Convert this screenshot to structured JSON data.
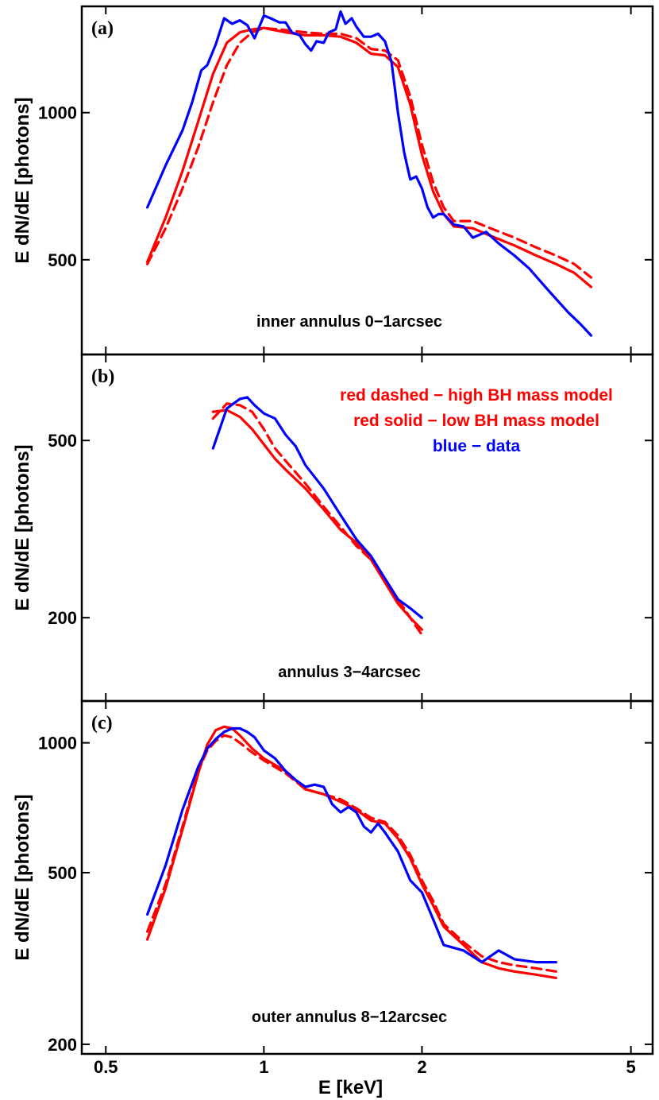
{
  "chart_data": [
    {
      "type": "line",
      "panel_label": "(a)",
      "annotation": "inner annulus 0−1arcsec",
      "ylabel": "E dN/dE [photons]",
      "xlabel": "",
      "x_scale": "log",
      "y_scale": "log",
      "xlim": [
        0.45,
        5.5
      ],
      "ylim": [
        320,
        1650
      ],
      "x_ticks": [
        0.5,
        1,
        2,
        5
      ],
      "y_ticks": [
        500,
        1000
      ],
      "series": [
        {
          "name": "",
          "color": "#ff0000",
          "style": "solid",
          "x": [
            0.6,
            0.65,
            0.7,
            0.75,
            0.8,
            0.85,
            0.9,
            0.95,
            1.0,
            1.1,
            1.2,
            1.3,
            1.4,
            1.5,
            1.6,
            1.7,
            1.8,
            1.9,
            2.0,
            2.1,
            2.2,
            2.3,
            2.5,
            2.7,
            3.0,
            3.3,
            3.6,
            3.9,
            4.2
          ],
          "y": [
            495,
            610,
            760,
            960,
            1200,
            1390,
            1460,
            1480,
            1490,
            1460,
            1440,
            1440,
            1430,
            1390,
            1320,
            1310,
            1240,
            1040,
            820,
            690,
            620,
            585,
            580,
            560,
            535,
            510,
            490,
            470,
            440
          ]
        },
        {
          "name": "",
          "color": "#ff0000",
          "style": "dashed",
          "x": [
            0.6,
            0.65,
            0.7,
            0.75,
            0.8,
            0.85,
            0.9,
            0.95,
            1.0,
            1.1,
            1.2,
            1.3,
            1.4,
            1.5,
            1.6,
            1.7,
            1.8,
            1.9,
            2.0,
            2.1,
            2.2,
            2.3,
            2.5,
            2.7,
            3.0,
            3.3,
            3.6,
            3.9,
            4.2
          ],
          "y": [
            490,
            580,
            700,
            850,
            1050,
            1250,
            1390,
            1460,
            1490,
            1475,
            1460,
            1450,
            1450,
            1420,
            1350,
            1340,
            1280,
            1080,
            860,
            720,
            640,
            600,
            600,
            580,
            555,
            530,
            510,
            490,
            460
          ]
        },
        {
          "name": "",
          "color": "#0000ff",
          "style": "solid",
          "x": [
            0.6,
            0.65,
            0.7,
            0.73,
            0.76,
            0.78,
            0.81,
            0.84,
            0.87,
            0.9,
            0.93,
            0.96,
            1.0,
            1.03,
            1.07,
            1.1,
            1.13,
            1.17,
            1.2,
            1.23,
            1.26,
            1.3,
            1.33,
            1.37,
            1.4,
            1.43,
            1.47,
            1.5,
            1.55,
            1.6,
            1.65,
            1.7,
            1.75,
            1.8,
            1.85,
            1.9,
            1.95,
            2.0,
            2.05,
            2.1,
            2.15,
            2.2,
            2.3,
            2.4,
            2.5,
            2.65,
            2.8,
            3.0,
            3.2,
            3.5,
            3.8,
            4.0,
            4.2
          ],
          "y": [
            640,
            780,
            920,
            1050,
            1220,
            1250,
            1380,
            1560,
            1520,
            1545,
            1510,
            1420,
            1580,
            1560,
            1530,
            1530,
            1460,
            1440,
            1380,
            1340,
            1400,
            1390,
            1460,
            1480,
            1610,
            1520,
            1560,
            1500,
            1430,
            1430,
            1450,
            1400,
            1270,
            1000,
            830,
            730,
            740,
            700,
            640,
            610,
            620,
            620,
            590,
            585,
            555,
            570,
            540,
            510,
            480,
            430,
            390,
            370,
            350
          ]
        }
      ]
    },
    {
      "type": "line",
      "panel_label": "(b)",
      "annotation": "annulus 3−4arcsec",
      "ylabel": "E dN/dE [photons]",
      "xlabel": "",
      "x_scale": "log",
      "y_scale": "log",
      "xlim": [
        0.45,
        5.5
      ],
      "ylim": [
        130,
        780
      ],
      "x_ticks": [
        0.5,
        1,
        2,
        5
      ],
      "y_ticks": [
        200,
        500
      ],
      "legend": [
        {
          "text": "red dashed − high BH mass model",
          "color": "#ff0000"
        },
        {
          "text": "red solid − low BH mass model",
          "color": "#ff0000"
        },
        {
          "text": "blue − data",
          "color": "#0000ff"
        }
      ],
      "series": [
        {
          "name": "",
          "color": "#ff0000",
          "style": "solid",
          "x": [
            0.8,
            0.85,
            0.9,
            0.95,
            1.0,
            1.05,
            1.1,
            1.2,
            1.3,
            1.4,
            1.5,
            1.6,
            1.7,
            1.8,
            1.9,
            2.0
          ],
          "y": [
            580,
            585,
            565,
            530,
            490,
            455,
            430,
            390,
            350,
            315,
            295,
            270,
            240,
            215,
            200,
            188
          ]
        },
        {
          "name": "",
          "color": "#ff0000",
          "style": "dashed",
          "x": [
            0.8,
            0.85,
            0.9,
            0.95,
            1.0,
            1.05,
            1.1,
            1.2,
            1.3,
            1.4,
            1.5,
            1.6,
            1.7,
            1.8,
            1.9,
            2.0
          ],
          "y": [
            560,
            605,
            600,
            580,
            530,
            480,
            450,
            400,
            355,
            320,
            290,
            270,
            245,
            220,
            200,
            183
          ]
        },
        {
          "name": "",
          "color": "#0000ff",
          "style": "solid",
          "x": [
            0.8,
            0.85,
            0.9,
            0.93,
            0.96,
            1.0,
            1.05,
            1.1,
            1.15,
            1.2,
            1.3,
            1.4,
            1.5,
            1.6,
            1.7,
            1.8,
            1.9,
            2.0
          ],
          "y": [
            480,
            590,
            620,
            625,
            600,
            575,
            560,
            515,
            485,
            440,
            390,
            340,
            300,
            275,
            245,
            220,
            210,
            200
          ]
        }
      ]
    },
    {
      "type": "line",
      "panel_label": "(c)",
      "annotation": "outer annulus 8−12arcsec",
      "ylabel": "E dN/dE [photons]",
      "xlabel": "E [keV]",
      "x_scale": "log",
      "y_scale": "log",
      "xlim": [
        0.45,
        5.5
      ],
      "ylim": [
        190,
        1250
      ],
      "x_ticks": [
        0.5,
        1,
        2,
        5
      ],
      "y_ticks": [
        200,
        500,
        1000
      ],
      "series": [
        {
          "name": "",
          "color": "#ff0000",
          "style": "solid",
          "x": [
            0.6,
            0.65,
            0.7,
            0.75,
            0.78,
            0.81,
            0.84,
            0.87,
            0.9,
            0.95,
            1.0,
            1.1,
            1.2,
            1.3,
            1.4,
            1.5,
            1.6,
            1.7,
            1.8,
            1.9,
            2.0,
            2.1,
            2.2,
            2.4,
            2.6,
            2.8,
            3.0,
            3.3,
            3.6
          ],
          "y": [
            350,
            460,
            630,
            850,
            990,
            1070,
            1090,
            1080,
            1040,
            970,
            920,
            860,
            780,
            760,
            730,
            700,
            660,
            650,
            600,
            540,
            470,
            420,
            375,
            340,
            310,
            300,
            295,
            290,
            285
          ]
        },
        {
          "name": "",
          "color": "#ff0000",
          "style": "dashed",
          "x": [
            0.6,
            0.65,
            0.7,
            0.75,
            0.78,
            0.81,
            0.84,
            0.87,
            0.9,
            0.95,
            1.0,
            1.1,
            1.2,
            1.3,
            1.4,
            1.5,
            1.6,
            1.7,
            1.8,
            1.9,
            2.0,
            2.1,
            2.2,
            2.4,
            2.6,
            2.8,
            3.0,
            3.3,
            3.6
          ],
          "y": [
            365,
            470,
            640,
            860,
            960,
            1010,
            1040,
            1030,
            1000,
            950,
            910,
            850,
            780,
            760,
            740,
            705,
            670,
            655,
            610,
            550,
            480,
            430,
            380,
            345,
            320,
            310,
            305,
            300,
            295
          ]
        },
        {
          "name": "",
          "color": "#0000ff",
          "style": "solid",
          "x": [
            0.6,
            0.65,
            0.7,
            0.75,
            0.78,
            0.81,
            0.84,
            0.87,
            0.9,
            0.93,
            0.96,
            1.0,
            1.05,
            1.1,
            1.15,
            1.2,
            1.25,
            1.3,
            1.35,
            1.4,
            1.45,
            1.5,
            1.55,
            1.6,
            1.65,
            1.7,
            1.8,
            1.9,
            2.0,
            2.1,
            2.2,
            2.4,
            2.6,
            2.8,
            3.0,
            3.3,
            3.6
          ],
          "y": [
            400,
            520,
            700,
            880,
            970,
            1020,
            1060,
            1080,
            1080,
            1060,
            1030,
            960,
            920,
            860,
            820,
            790,
            800,
            790,
            720,
            690,
            710,
            690,
            640,
            620,
            650,
            620,
            560,
            480,
            450,
            390,
            340,
            330,
            310,
            330,
            315,
            310,
            310
          ]
        }
      ]
    }
  ]
}
